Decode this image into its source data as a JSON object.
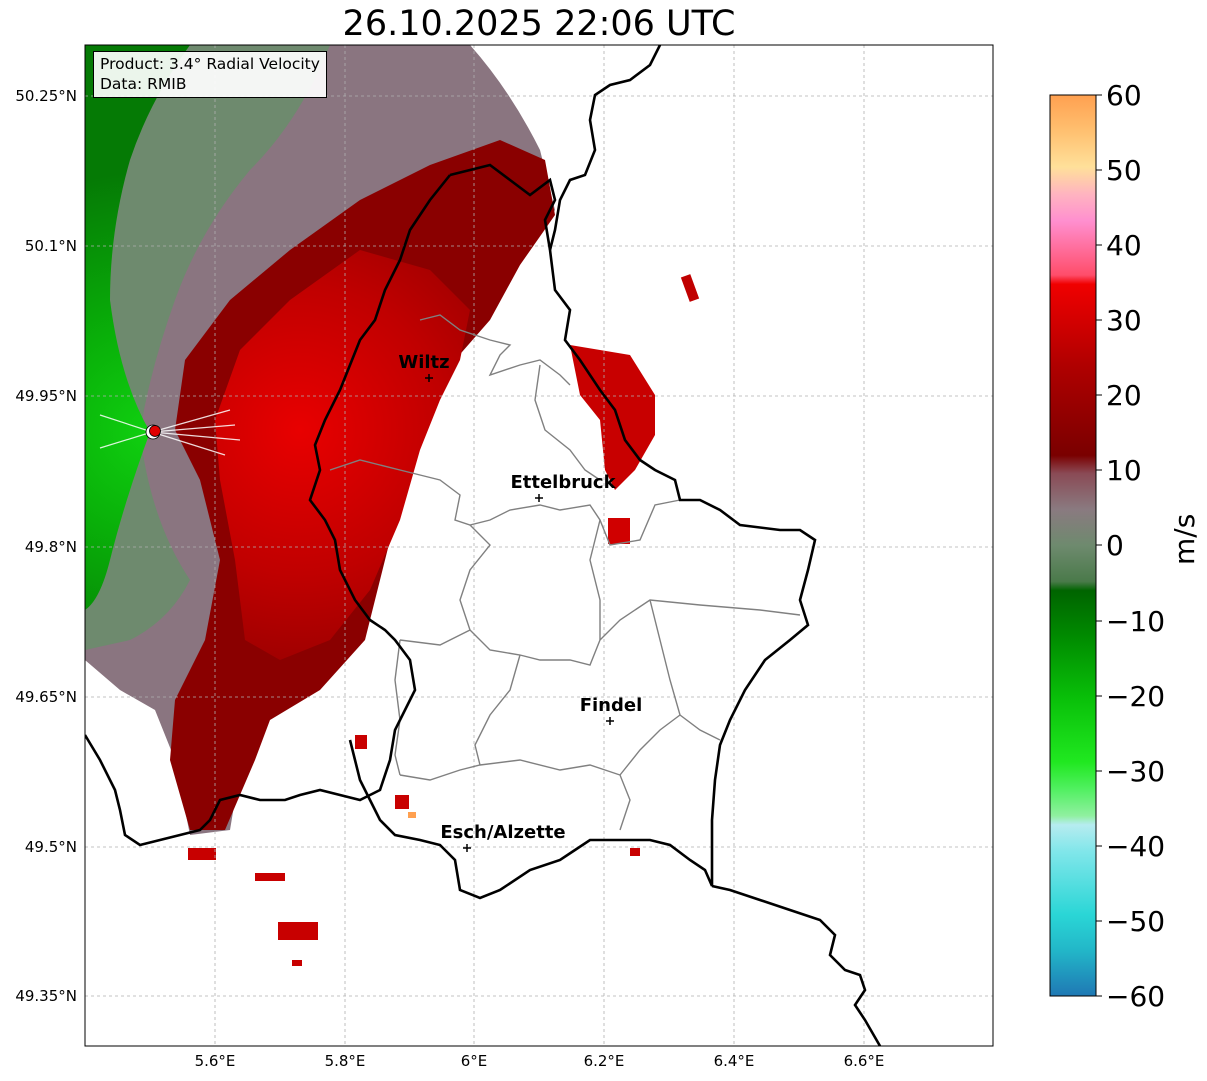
{
  "title": "26.10.2025 22:06 UTC",
  "info": {
    "product": "Product: 3.4° Radial Velocity",
    "source": "Data: RMIB"
  },
  "axes": {
    "lat_ticks": [
      "50.25°N",
      "50.1°N",
      "49.95°N",
      "49.8°N",
      "49.65°N",
      "49.5°N",
      "49.35°N"
    ],
    "lon_ticks": [
      "5.6°E",
      "5.8°E",
      "6°E",
      "6.2°E",
      "6.4°E",
      "6.6°E"
    ]
  },
  "cities": [
    {
      "name": "Wiltz"
    },
    {
      "name": "Ettelbruck"
    },
    {
      "name": "Findel"
    },
    {
      "name": "Esch/Alzette"
    }
  ],
  "colorbar": {
    "unit": "m/s",
    "min": -60,
    "max": 60,
    "tick_labels": [
      "60",
      "50",
      "40",
      "30",
      "20",
      "10",
      "0",
      "−10",
      "−20",
      "−30",
      "−40",
      "−50",
      "−60"
    ],
    "colors": {
      "neg60": "#1f78b4",
      "neg50": "#2ad6d6",
      "neg40": "#b6ecf0",
      "neg30": "#3cf03c",
      "neg20": "#09c009",
      "neg10": "#006400",
      "zero": "#6e8a6e",
      "pos5": "#8a6f7a",
      "pos10": "#7a0000",
      "pos20": "#d40000",
      "pos30": "#ff4d6a",
      "pos40": "#ff8fcf",
      "pos50": "#ffd08a",
      "pos60": "#ffa050"
    }
  },
  "map_colors": {
    "border_country": "#000000",
    "border_canton": "#808080",
    "gridline": "#b0b0b0",
    "radar_marker": "#e00000"
  }
}
